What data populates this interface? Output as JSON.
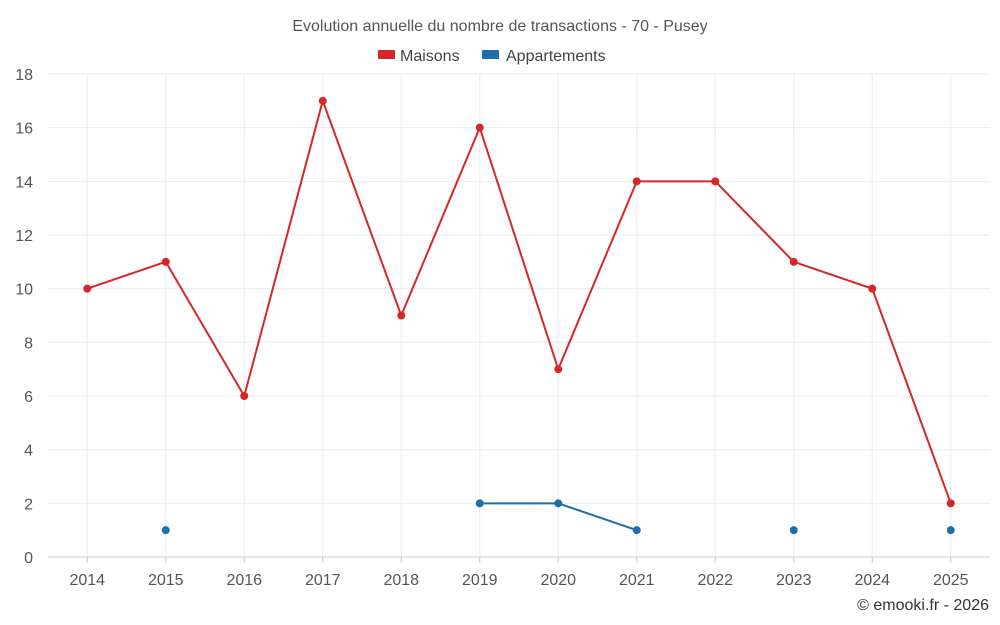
{
  "chart_data": {
    "type": "line",
    "title": "Evolution annuelle du nombre de transactions - 70 - Pusey",
    "categories": [
      "2014",
      "2015",
      "2016",
      "2017",
      "2018",
      "2019",
      "2020",
      "2021",
      "2022",
      "2023",
      "2024",
      "2025"
    ],
    "ylim": [
      0,
      18
    ],
    "yticks": [
      0,
      2,
      4,
      6,
      8,
      10,
      12,
      14,
      16,
      18
    ],
    "grid": true,
    "legend_position": "top-center",
    "series": [
      {
        "name": "Maisons",
        "color": "#d62728",
        "values": [
          10,
          11,
          6,
          17,
          9,
          16,
          7,
          14,
          14,
          11,
          10,
          2
        ]
      },
      {
        "name": "Appartements",
        "color": "#1f6ea8",
        "values": [
          null,
          1,
          null,
          null,
          null,
          2,
          2,
          1,
          null,
          1,
          null,
          1
        ]
      }
    ]
  },
  "credit": "© emooki.fr - 2026"
}
